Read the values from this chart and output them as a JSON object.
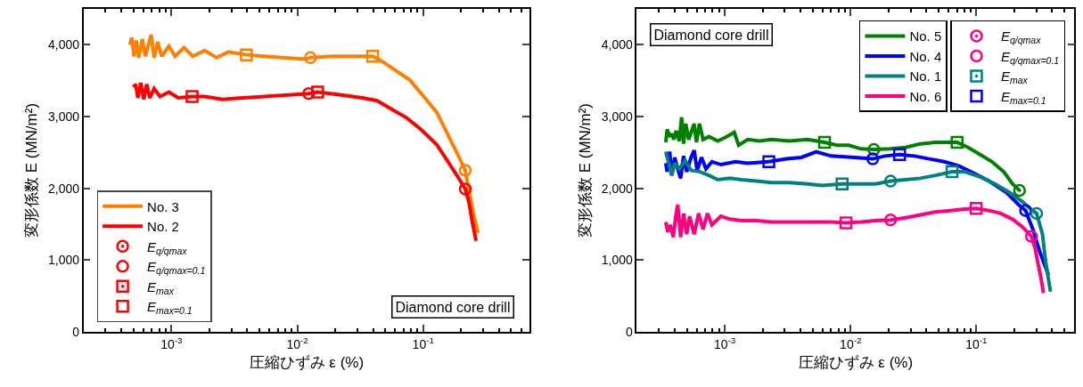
{
  "chart_data": [
    {
      "type": "line",
      "xlabel": "圧縮ひずみ ε (%)",
      "ylabel": "変形係数 E (MN/m²)",
      "log": "x",
      "xlim": [
        0.0002,
        0.7
      ],
      "xticks": [
        {
          "value": 0.001,
          "label": "10$^{-3}$"
        },
        {
          "value": 0.01,
          "label": "10$^{-2}$"
        },
        {
          "value": 0.1,
          "label": "10$^{-1}$"
        }
      ],
      "ylim": [
        0,
        4500
      ],
      "yticks": [
        0,
        {
          "value": 1000,
          "label": "1,000"
        },
        {
          "value": 2000,
          "label": "2,000"
        },
        {
          "value": 3000,
          "label": "3,000"
        },
        {
          "value": 4000,
          "label": "4,000"
        }
      ],
      "grid": false,
      "legend": "bottom left",
      "annotations": [
        "Diamond core drill"
      ],
      "series": [
        {
          "name": "No. 3",
          "color": "#ff8000",
          "line_style": "solid",
          "x": [
            0.000467,
            0.000485,
            0.000504,
            0.000526,
            0.00055,
            0.000587,
            0.00062,
            0.000691,
            0.000729,
            0.000779,
            0.000836,
            0.000957,
            0.00107,
            0.00126,
            0.00148,
            0.00184,
            0.00229,
            0.00284,
            0.00394,
            0.00545,
            0.00755,
            0.0117,
            0.0127,
            0.0191,
            0.0397,
            0.048,
            0.0597,
            0.0783,
            0.103,
            0.128,
            0.159,
            0.187,
            0.216,
            0.232,
            0.252,
            0.273
          ],
          "values": [
            4000,
            4100,
            3840,
            4060,
            3820,
            4080,
            3840,
            4140,
            3820,
            4040,
            3840,
            3980,
            3840,
            3960,
            3840,
            3920,
            3820,
            3900,
            3860,
            3840,
            3820,
            3800,
            3820,
            3840,
            3840,
            3760,
            3650,
            3510,
            3260,
            3060,
            2730,
            2480,
            2250,
            1950,
            1620,
            1380
          ]
        },
        {
          "name": "No. 2",
          "color": "#ff0000",
          "line_style": "solid",
          "x": [
            0.000499,
            0.000521,
            0.000541,
            0.000571,
            0.000603,
            0.000637,
            0.000673,
            0.000729,
            0.000813,
            0.000957,
            0.00113,
            0.00146,
            0.00184,
            0.00255,
            0.00373,
            0.00545,
            0.00842,
            0.0123,
            0.0145,
            0.0224,
            0.0328,
            0.0431,
            0.0565,
            0.0742,
            0.0973,
            0.128,
            0.159,
            0.187,
            0.216,
            0.232,
            0.245,
            0.263
          ],
          "values": [
            3410,
            3450,
            3260,
            3470,
            3240,
            3450,
            3260,
            3390,
            3280,
            3340,
            3260,
            3280,
            3280,
            3240,
            3260,
            3280,
            3300,
            3320,
            3340,
            3300,
            3260,
            3220,
            3100,
            2980,
            2810,
            2610,
            2360,
            2170,
            1990,
            1790,
            1540,
            1270
          ]
        },
        {
          "name": "E$_{q/qmax}$",
          "type": "scatter",
          "marker": "circle-dot",
          "color": "#ff0000",
          "x": [
            0.216,
            0.216
          ],
          "values": [
            2250,
            1990
          ],
          "colors": [
            "#ff8000",
            "#ff0000"
          ]
        },
        {
          "name": "E$_{q/qmax=0.1}$",
          "type": "scatter",
          "marker": "circle",
          "color": "#ff0000",
          "x": [
            0.0127,
            0.0123
          ],
          "values": [
            3820,
            3320
          ],
          "colors": [
            "#ff8000",
            "#ff0000"
          ]
        },
        {
          "name": "E$_{max}$",
          "type": "scatter",
          "marker": "square-dot",
          "color": "#ff0000",
          "x": [
            0.0397,
            0.0145
          ],
          "values": [
            3840,
            3340
          ],
          "colors": [
            "#ff8000",
            "#ff0000"
          ]
        },
        {
          "name": "E$_{max=0.1}$",
          "type": "scatter",
          "marker": "square",
          "color": "#ff0000",
          "x": [
            0.00394,
            0.00146
          ],
          "values": [
            3860,
            3280
          ],
          "colors": [
            "#ff8000",
            "#ff0000"
          ]
        }
      ]
    },
    {
      "type": "line",
      "xlabel": "圧縮ひずみ ε (%)",
      "ylabel": "変形係数 E (MN/m²)",
      "log": "x",
      "xlim": [
        0.0002,
        0.6
      ],
      "xticks": [
        {
          "value": 0.001,
          "label": "10$^{-3}$"
        },
        {
          "value": 0.01,
          "label": "10$^{-2}$"
        },
        {
          "value": 0.1,
          "label": "10$^{-1}$"
        }
      ],
      "ylim": [
        0,
        4500
      ],
      "yticks": [
        0,
        {
          "value": 1000,
          "label": "1,000"
        },
        {
          "value": 2000,
          "label": "2,000"
        },
        {
          "value": 3000,
          "label": "3,000"
        },
        {
          "value": 4000,
          "label": "4,000"
        }
      ],
      "grid": false,
      "legend": "top right",
      "annotations": [
        "Diamond core drill"
      ],
      "series": [
        {
          "name": "No. 5",
          "color": "#008000",
          "line_style": "solid",
          "x": [
            0.00034,
            0.000349,
            0.000365,
            0.000379,
            0.000394,
            0.000411,
            0.000435,
            0.000454,
            0.000471,
            0.00049,
            0.000517,
            0.000571,
            0.000596,
            0.000629,
            0.000672,
            0.000749,
            0.000882,
            0.00104,
            0.00119,
            0.00129,
            0.00152,
            0.00189,
            0.00235,
            0.00326,
            0.00453,
            0.00621,
            0.0078,
            0.0097,
            0.0121,
            0.0153,
            0.0208,
            0.0273,
            0.0359,
            0.0472,
            0.0702,
            0.0859,
            0.107,
            0.133,
            0.165,
            0.194,
            0.22
          ],
          "values": [
            2640,
            2820,
            2720,
            2760,
            2680,
            2800,
            2660,
            2990,
            2620,
            2900,
            2680,
            2900,
            2640,
            2900,
            2680,
            2720,
            2660,
            2720,
            2780,
            2600,
            2680,
            2660,
            2680,
            2660,
            2680,
            2640,
            2600,
            2600,
            2550,
            2540,
            2550,
            2570,
            2620,
            2640,
            2640,
            2570,
            2470,
            2370,
            2230,
            2060,
            1970
          ]
        },
        {
          "name": "No. 4",
          "color": "#0000ff",
          "line_style": "solid",
          "x": [
            0.00034,
            0.000349,
            0.000365,
            0.000379,
            0.0004,
            0.000423,
            0.000446,
            0.000471,
            0.000498,
            0.00054,
            0.000571,
            0.000603,
            0.000654,
            0.000709,
            0.000791,
            0.000932,
            0.00122,
            0.00152,
            0.00224,
            0.00309,
            0.00406,
            0.00533,
            0.007,
            0.0108,
            0.015,
            0.0187,
            0.0245,
            0.0322,
            0.0423,
            0.0555,
            0.0729,
            0.0957,
            0.126,
            0.174,
            0.217,
            0.246,
            0.285,
            0.318,
            0.374
          ],
          "values": [
            2350,
            2230,
            2510,
            2180,
            2430,
            2270,
            2140,
            2450,
            2230,
            2430,
            2530,
            2250,
            2430,
            2270,
            2370,
            2330,
            2370,
            2350,
            2370,
            2410,
            2430,
            2510,
            2450,
            2430,
            2410,
            2450,
            2470,
            2450,
            2410,
            2370,
            2310,
            2210,
            2100,
            1940,
            1770,
            1690,
            1400,
            1120,
            790
          ]
        },
        {
          "name": "No. 1",
          "color": "#008080",
          "line_style": "solid",
          "x": [
            0.00034,
            0.000359,
            0.000379,
            0.0004,
            0.000435,
            0.000484,
            0.00054,
            0.000636,
            0.000749,
            0.000882,
            0.0011,
            0.00136,
            0.00179,
            0.00235,
            0.00326,
            0.00453,
            0.00594,
            0.00856,
            0.0121,
            0.0158,
            0.0208,
            0.0273,
            0.0359,
            0.0472,
            0.064,
            0.0813,
            0.107,
            0.14,
            0.184,
            0.229,
            0.27,
            0.301,
            0.335,
            0.354,
            0.388
          ],
          "values": [
            2510,
            2350,
            2180,
            2350,
            2270,
            2390,
            2250,
            2230,
            2180,
            2120,
            2140,
            2120,
            2100,
            2080,
            2080,
            2060,
            2040,
            2060,
            2060,
            2060,
            2100,
            2120,
            2140,
            2180,
            2230,
            2230,
            2160,
            2060,
            1940,
            1820,
            1710,
            1650,
            1360,
            990,
            560
          ]
        },
        {
          "name": "No. 6",
          "color": "#ff0080",
          "line_style": "solid",
          "x": [
            0.00034,
            0.000353,
            0.000369,
            0.00039,
            0.000411,
            0.000423,
            0.000446,
            0.000471,
            0.000498,
            0.000526,
            0.000571,
            0.000619,
            0.000672,
            0.000729,
            0.000791,
            0.000932,
            0.0011,
            0.00136,
            0.00179,
            0.00235,
            0.00326,
            0.00453,
            0.007,
            0.00919,
            0.0121,
            0.0158,
            0.0208,
            0.0273,
            0.0359,
            0.0472,
            0.0619,
            0.0813,
            0.0995,
            0.126,
            0.156,
            0.194,
            0.229,
            0.274,
            0.293,
            0.309,
            0.326,
            0.341
          ],
          "values": [
            1530,
            1390,
            1490,
            1320,
            1650,
            1770,
            1320,
            1650,
            1360,
            1610,
            1360,
            1650,
            1430,
            1650,
            1490,
            1610,
            1570,
            1550,
            1550,
            1530,
            1530,
            1530,
            1530,
            1520,
            1530,
            1550,
            1560,
            1590,
            1630,
            1670,
            1690,
            1710,
            1720,
            1690,
            1650,
            1570,
            1470,
            1330,
            1160,
            950,
            750,
            540
          ]
        },
        {
          "name": "E$_{q/qmax}$",
          "type": "scatter",
          "marker": "circle-dot",
          "color": "#ff0080",
          "x": [
            0.22,
            0.246,
            0.301,
            0.274
          ],
          "values": [
            1970,
            1690,
            1650,
            1330
          ],
          "colors": [
            "#008000",
            "#0000ff",
            "#008080",
            "#ff0080"
          ]
        },
        {
          "name": "E$_{q/qmax=0.1}$",
          "type": "scatter",
          "marker": "circle",
          "color": "#ff0080",
          "x": [
            0.0153,
            0.015,
            0.0208,
            0.0208
          ],
          "values": [
            2540,
            2410,
            2100,
            1560
          ],
          "colors": [
            "#008000",
            "#0000ff",
            "#008080",
            "#ff0080"
          ]
        },
        {
          "name": "E$_{max}$",
          "type": "scatter",
          "marker": "square-dot",
          "color": "#008080",
          "x": [
            0.0702,
            0.0245,
            0.064,
            0.0995
          ],
          "values": [
            2640,
            2470,
            2230,
            1720
          ],
          "colors": [
            "#008000",
            "#0000ff",
            "#008080",
            "#ff0080"
          ]
        },
        {
          "name": "E$_{max=0.1}$",
          "type": "scatter",
          "marker": "square",
          "color": "#0000ff",
          "x": [
            0.00621,
            0.00224,
            0.00856,
            0.00919
          ],
          "values": [
            2640,
            2370,
            2060,
            1520
          ],
          "colors": [
            "#008000",
            "#0000ff",
            "#008080",
            "#ff0080"
          ]
        }
      ]
    }
  ]
}
